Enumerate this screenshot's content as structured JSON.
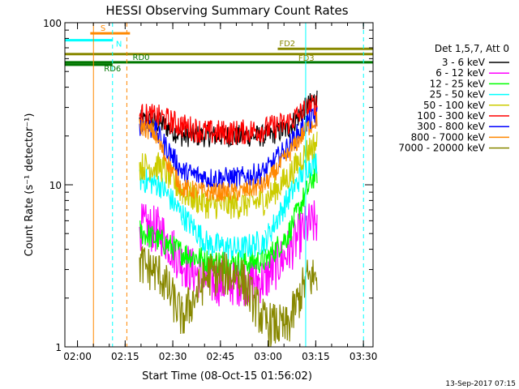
{
  "chart_data": {
    "type": "line",
    "title": "HESSI Observing Summary Count Rates",
    "xlabel": "Start Time (08-Oct-15 01:56:02)",
    "ylabel": "Count Rate (s⁻¹ detector⁻¹)",
    "x_unit": "minutes after 01:56:02",
    "xlim": [
      0,
      97
    ],
    "ylim": [
      1,
      100
    ],
    "y_scale": "log",
    "x_ticks": [
      {
        "label": "02:00",
        "value": 3.97
      },
      {
        "label": "02:15",
        "value": 18.97
      },
      {
        "label": "02:30",
        "value": 33.97
      },
      {
        "label": "02:45",
        "value": 48.97
      },
      {
        "label": "03:00",
        "value": 63.97
      },
      {
        "label": "03:15",
        "value": 78.97
      },
      {
        "label": "03:30",
        "value": 93.97
      }
    ],
    "y_ticks": [
      {
        "label": "1",
        "value": 1
      },
      {
        "label": "10",
        "value": 10
      },
      {
        "label": "100",
        "value": 100
      }
    ],
    "legend_header": "Det 1,5,7, Att 0",
    "legend_position": "right",
    "footer_timestamp": "13-Sep-2017 07:15",
    "segments": [
      [
        23.5,
        37
      ],
      [
        37,
        63
      ],
      [
        63,
        79.5
      ]
    ],
    "series": [
      {
        "name": "3 - 6 keV",
        "color": "#000000",
        "values": [
          [
            22,
            25
          ],
          [
            30,
            24
          ],
          [
            37,
            20
          ],
          [
            45,
            20
          ],
          [
            55,
            20
          ],
          [
            63,
            20
          ],
          [
            70,
            22
          ],
          [
            76,
            30
          ],
          [
            79,
            34
          ]
        ],
        "noise": 0.07
      },
      {
        "name": "6 - 12 keV",
        "color": "#ff00ff",
        "values": [
          [
            22,
            5.6
          ],
          [
            30,
            5.2
          ],
          [
            37,
            3.3
          ],
          [
            45,
            2.5
          ],
          [
            55,
            2.5
          ],
          [
            63,
            2.6
          ],
          [
            70,
            3.8
          ],
          [
            76,
            5.5
          ],
          [
            79,
            5.8
          ]
        ],
        "noise": 0.15
      },
      {
        "name": "12 - 25 keV",
        "color": "#00ff00",
        "values": [
          [
            22,
            5.3
          ],
          [
            30,
            4.5
          ],
          [
            37,
            3.8
          ],
          [
            45,
            3.4
          ],
          [
            55,
            3.3
          ],
          [
            63,
            3.4
          ],
          [
            70,
            4.8
          ],
          [
            76,
            9
          ],
          [
            79,
            12
          ]
        ],
        "noise": 0.08
      },
      {
        "name": "25 - 50 keV",
        "color": "#00ffff",
        "values": [
          [
            22,
            11
          ],
          [
            30,
            10
          ],
          [
            37,
            6.5
          ],
          [
            45,
            4.3
          ],
          [
            55,
            4
          ],
          [
            63,
            4.5
          ],
          [
            70,
            8
          ],
          [
            76,
            13
          ],
          [
            79,
            14
          ]
        ],
        "noise": 0.08
      },
      {
        "name": "50 - 100 keV",
        "color": "#cccc00",
        "values": [
          [
            22,
            13
          ],
          [
            30,
            13
          ],
          [
            37,
            9
          ],
          [
            45,
            7.5
          ],
          [
            55,
            7.5
          ],
          [
            63,
            8
          ],
          [
            70,
            11
          ],
          [
            76,
            16
          ],
          [
            79,
            18
          ]
        ],
        "noise": 0.09
      },
      {
        "name": "100 - 300 keV",
        "color": "#ff0000",
        "values": [
          [
            22,
            27
          ],
          [
            30,
            26
          ],
          [
            37,
            23
          ],
          [
            45,
            21
          ],
          [
            55,
            21
          ],
          [
            63,
            22
          ],
          [
            70,
            24
          ],
          [
            76,
            29
          ],
          [
            79,
            31
          ]
        ],
        "noise": 0.08
      },
      {
        "name": "300 - 800 keV",
        "color": "#0000ff",
        "values": [
          [
            22,
            24
          ],
          [
            28,
            22
          ],
          [
            33,
            16
          ],
          [
            37,
            12
          ],
          [
            45,
            11
          ],
          [
            55,
            11
          ],
          [
            63,
            12
          ],
          [
            70,
            17
          ],
          [
            76,
            24
          ],
          [
            79,
            26
          ]
        ],
        "noise": 0.07
      },
      {
        "name": "800 - 7000 keV",
        "color": "#ff8800",
        "values": [
          [
            22,
            24
          ],
          [
            28,
            21
          ],
          [
            33,
            13
          ],
          [
            37,
            9.5
          ],
          [
            45,
            9
          ],
          [
            55,
            9
          ],
          [
            63,
            10
          ],
          [
            70,
            15
          ],
          [
            76,
            22
          ],
          [
            79,
            25
          ]
        ],
        "noise": 0.06
      },
      {
        "name": "7000 - 20000 keV",
        "color": "#888800",
        "values": [
          [
            22,
            3.4
          ],
          [
            30,
            2.8
          ],
          [
            37,
            1.5
          ],
          [
            45,
            2.8
          ],
          [
            55,
            2.8
          ],
          [
            63,
            1.4
          ],
          [
            70,
            1.3
          ],
          [
            76,
            2.6
          ],
          [
            79,
            2.7
          ]
        ],
        "noise": 0.14
      }
    ],
    "flag_lines": [
      {
        "label": "S",
        "color": "#ff8800",
        "x0": 8,
        "x1": 20.5,
        "y": 86
      },
      {
        "label": "N",
        "color": "#00ffff",
        "x0": 0,
        "x1": 15,
        "y": 78
      },
      {
        "label": "FD2",
        "color": "#888800",
        "x0": 67,
        "x1": 97,
        "y": 69
      },
      {
        "label": "FD3",
        "color": "#888800",
        "x0": 0,
        "x1": 97,
        "y": 64
      },
      {
        "label": "RD0",
        "color": "#007700",
        "x0": 0,
        "x1": 97,
        "y": 57
      },
      {
        "label": "RD6",
        "color": "#007700",
        "x0": 0,
        "x1": 15,
        "y": 55
      }
    ],
    "vertical_markers": [
      {
        "x": 0,
        "color": "#00ffff",
        "style": "solid"
      },
      {
        "x": 9,
        "color": "#ff8800",
        "style": "solid"
      },
      {
        "x": 15,
        "color": "#00ffff",
        "style": "dashed"
      },
      {
        "x": 19.5,
        "color": "#ff8800",
        "style": "dashed"
      },
      {
        "x": 75.8,
        "color": "#00ffff",
        "style": "solid"
      },
      {
        "x": 94,
        "color": "#00ffff",
        "style": "dashed"
      }
    ]
  }
}
